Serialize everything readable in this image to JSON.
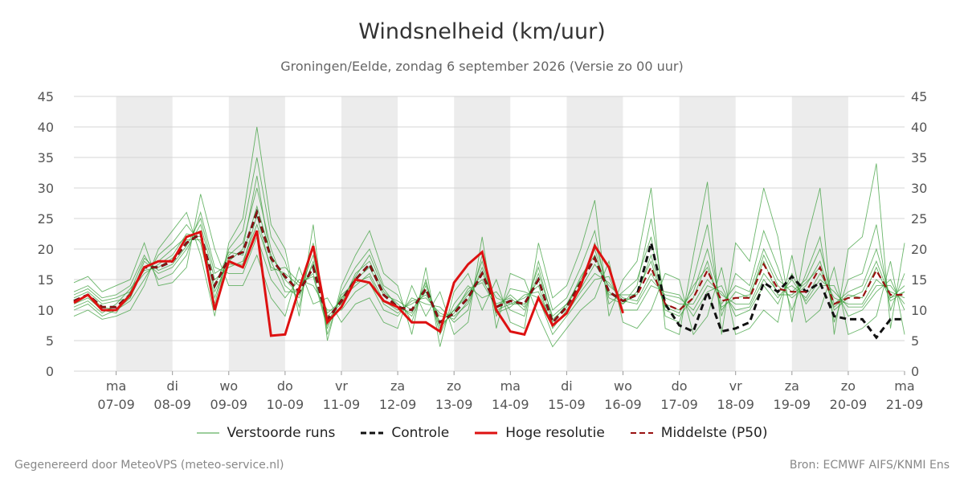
{
  "chart_data": {
    "type": "line",
    "title": "Windsnelheid (km/uur)",
    "subtitle": "Groningen/Eelde, zondag  6 september 2026 (Versie zo 00 uur)",
    "ylim": [
      0,
      45
    ],
    "yticks": [
      0,
      5,
      10,
      15,
      20,
      25,
      30,
      35,
      40,
      45
    ],
    "xlim": [
      -0.75,
      14.0
    ],
    "day_ticks": [
      {
        "x": 0,
        "day": "ma",
        "date": "07-09"
      },
      {
        "x": 1,
        "day": "di",
        "date": "08-09"
      },
      {
        "x": 2,
        "day": "wo",
        "date": "09-09"
      },
      {
        "x": 3,
        "day": "do",
        "date": "10-09"
      },
      {
        "x": 4,
        "day": "vr",
        "date": "11-09"
      },
      {
        "x": 5,
        "day": "za",
        "date": "12-09"
      },
      {
        "x": 6,
        "day": "zo",
        "date": "13-09"
      },
      {
        "x": 7,
        "day": "ma",
        "date": "14-09"
      },
      {
        "x": 8,
        "day": "di",
        "date": "15-09"
      },
      {
        "x": 9,
        "day": "wo",
        "date": "16-09"
      },
      {
        "x": 10,
        "day": "do",
        "date": "17-09"
      },
      {
        "x": 11,
        "day": "vr",
        "date": "18-09"
      },
      {
        "x": 12,
        "day": "za",
        "date": "19-09"
      },
      {
        "x": 13,
        "day": "zo",
        "date": "20-09"
      },
      {
        "x": 14,
        "day": "ma",
        "date": "21-09"
      }
    ],
    "shaded_days": [
      [
        0,
        1
      ],
      [
        2,
        3
      ],
      [
        4,
        5
      ],
      [
        6,
        7
      ],
      [
        8,
        9
      ],
      [
        10,
        11
      ],
      [
        12,
        13
      ]
    ],
    "grid": true,
    "legend_position": "bottom",
    "hires_step_days": 0.25,
    "ens_step_days": 0.25,
    "series": [
      {
        "name": "Hoge resolutie",
        "color": "#dd1111",
        "style": "solid",
        "x_start": -0.75,
        "values": [
          11.2,
          12.5,
          10.0,
          10.0,
          12.5,
          17.0,
          18.0,
          18.0,
          22.0,
          22.8,
          10.0,
          18.0,
          17.0,
          23.0,
          5.8,
          6.0,
          13.5,
          20.5,
          8.0,
          10.5,
          15.0,
          14.5,
          11.5,
          10.5,
          8.0,
          8.0,
          6.5,
          14.5,
          17.5,
          19.5,
          10.0,
          6.5,
          6.0,
          12.0,
          7.5,
          9.5,
          14.0,
          20.5,
          17.0,
          9.5
        ]
      },
      {
        "name": "Controle",
        "color": "#111111",
        "style": "dashed",
        "x_start": -0.75,
        "values": [
          11.5,
          12.5,
          10.5,
          10.5,
          12.5,
          17.0,
          17.0,
          18.0,
          21.0,
          22.5,
          14.0,
          18.5,
          19.5,
          26.0,
          18.5,
          15.5,
          13.0,
          17.0,
          8.5,
          11.5,
          15.0,
          17.5,
          12.5,
          10.5,
          10.0,
          13.5,
          8.0,
          9.5,
          12.0,
          16.0,
          10.5,
          11.5,
          11.0,
          15.0,
          8.0,
          10.5,
          14.5,
          18.5,
          13.0,
          11.5,
          12.5,
          21.0,
          11.0,
          7.5,
          6.5,
          13.0,
          6.5,
          7.0,
          8.0,
          14.5,
          13.0,
          15.5,
          13.0,
          14.5,
          9.0,
          8.5,
          8.5,
          5.5,
          8.5,
          8.5
        ]
      },
      {
        "name": "Middelste (P50)",
        "color": "#991111",
        "style": "dashed",
        "x_start": -0.75,
        "values": [
          11.5,
          12.5,
          10.5,
          10.5,
          12.5,
          17.0,
          17.0,
          18.0,
          21.0,
          22.5,
          14.0,
          18.5,
          19.5,
          26.0,
          18.5,
          15.5,
          13.0,
          17.0,
          8.5,
          11.5,
          15.0,
          17.5,
          12.5,
          10.5,
          10.0,
          13.5,
          8.0,
          9.5,
          12.0,
          16.0,
          10.5,
          11.5,
          11.0,
          15.0,
          8.0,
          10.5,
          14.5,
          18.5,
          13.0,
          11.5,
          12.5,
          17.0,
          11.0,
          10.0,
          12.0,
          16.5,
          11.5,
          12.0,
          12.0,
          17.5,
          13.5,
          13.0,
          13.0,
          17.0,
          11.0,
          12.0,
          12.0,
          16.5,
          12.5,
          12.5
        ]
      },
      {
        "name": "Verstoorde runs",
        "color": "#3a9e3a",
        "style": "thin",
        "x_start": -0.75,
        "members": [
          [
            11.0,
            12.0,
            10.0,
            9.5,
            13.0,
            16.0,
            17.5,
            19.0,
            22.5,
            22.0,
            12.0,
            19.0,
            21.0,
            30.0,
            20.0,
            14.0,
            12.0,
            18.0,
            9.0,
            11.0,
            16.0,
            18.0,
            13.0,
            11.0,
            9.0,
            14.0,
            7.0,
            10.0,
            13.0,
            15.0,
            11.0,
            12.0,
            10.0,
            16.0,
            9.0,
            11.0,
            15.0,
            20.0,
            12.0,
            11.0,
            13.0,
            18.0,
            10.0,
            9.0,
            12.0,
            18.0,
            10.0,
            13.0,
            12.0,
            19.0,
            14.0,
            12.0,
            14.0,
            18.0,
            10.0,
            12.0,
            13.0,
            18.0,
            12.0,
            13.0
          ],
          [
            12.0,
            13.0,
            11.0,
            11.5,
            12.0,
            18.0,
            16.0,
            17.0,
            20.0,
            24.0,
            15.0,
            17.0,
            18.0,
            24.0,
            17.0,
            16.0,
            14.0,
            16.0,
            7.5,
            12.0,
            14.0,
            16.0,
            11.5,
            10.0,
            11.0,
            12.5,
            9.0,
            9.0,
            11.0,
            17.0,
            10.0,
            11.0,
            12.0,
            14.0,
            7.0,
            10.0,
            13.5,
            17.5,
            14.0,
            12.0,
            11.5,
            16.0,
            12.0,
            11.0,
            11.0,
            15.0,
            12.5,
            11.0,
            11.0,
            16.0,
            13.0,
            14.0,
            12.0,
            16.0,
            12.0,
            11.0,
            11.0,
            15.0,
            13.0,
            12.0
          ],
          [
            10.0,
            11.0,
            9.0,
            10.0,
            11.5,
            15.0,
            19.0,
            21.0,
            24.0,
            21.0,
            11.0,
            20.0,
            23.0,
            35.0,
            22.0,
            18.0,
            10.5,
            21.0,
            6.0,
            13.0,
            17.0,
            20.0,
            14.0,
            12.5,
            8.0,
            15.0,
            6.0,
            11.0,
            14.0,
            12.0,
            13.0,
            10.0,
            9.0,
            18.0,
            10.0,
            12.0,
            17.0,
            23.0,
            11.0,
            13.0,
            15.0,
            22.0,
            9.0,
            8.0,
            15.0,
            24.0,
            9.0,
            16.0,
            14.0,
            23.0,
            17.0,
            10.0,
            16.0,
            22.0,
            8.0,
            15.0,
            16.0,
            24.0,
            10.0,
            16.0
          ],
          [
            13.0,
            14.0,
            12.0,
            12.5,
            14.0,
            19.0,
            15.0,
            16.0,
            19.0,
            26.0,
            17.0,
            16.0,
            16.0,
            22.0,
            15.0,
            12.0,
            15.0,
            14.0,
            10.0,
            10.0,
            13.0,
            14.5,
            10.0,
            9.0,
            12.0,
            11.0,
            10.5,
            8.0,
            10.0,
            19.0,
            9.0,
            13.5,
            13.0,
            12.0,
            6.0,
            9.0,
            12.0,
            15.0,
            15.5,
            10.0,
            10.0,
            14.0,
            13.0,
            12.5,
            9.0,
            13.0,
            14.0,
            9.0,
            10.0,
            14.0,
            11.0,
            16.0,
            11.0,
            14.0,
            14.0,
            9.0,
            10.0,
            13.0,
            15.0,
            10.0
          ],
          [
            9.0,
            10.0,
            8.5,
            9.0,
            10.0,
            14.0,
            20.0,
            23.0,
            26.0,
            19.0,
            9.0,
            21.0,
            25.0,
            40.0,
            24.0,
            20.0,
            9.0,
            24.0,
            5.0,
            14.0,
            19.0,
            23.0,
            16.0,
            14.0,
            6.0,
            17.0,
            4.0,
            13.0,
            16.0,
            10.0,
            15.0,
            8.0,
            7.0,
            21.0,
            12.0,
            14.0,
            20.0,
            28.0,
            9.0,
            15.0,
            18.0,
            30.0,
            7.0,
            6.0,
            19.0,
            31.0,
            6.0,
            21.0,
            18.0,
            30.0,
            22.0,
            8.0,
            21.0,
            30.0,
            6.0,
            20.0,
            22.0,
            34.0,
            7.0,
            21.0
          ],
          [
            14.5,
            15.5,
            13.0,
            14.0,
            15.0,
            21.0,
            14.0,
            14.5,
            17.0,
            29.0,
            20.0,
            14.0,
            14.0,
            19.0,
            12.0,
            9.0,
            17.0,
            11.0,
            12.0,
            8.0,
            11.0,
            12.0,
            8.0,
            7.0,
            14.0,
            9.0,
            13.0,
            6.0,
            8.0,
            22.0,
            7.0,
            16.0,
            15.0,
            9.0,
            4.0,
            7.0,
            10.0,
            12.0,
            18.0,
            8.0,
            7.0,
            10.0,
            16.0,
            15.0,
            6.0,
            9.0,
            17.0,
            6.0,
            7.0,
            10.0,
            8.0,
            19.0,
            8.0,
            10.0,
            17.0,
            6.0,
            7.0,
            9.0,
            18.0,
            6.0
          ],
          [
            11.5,
            12.5,
            10.5,
            10.0,
            12.0,
            17.0,
            18.0,
            20.0,
            22.0,
            23.0,
            13.0,
            18.0,
            20.0,
            32.0,
            18.0,
            13.0,
            13.0,
            19.0,
            8.0,
            12.0,
            15.0,
            17.0,
            12.5,
            11.5,
            10.0,
            13.0,
            8.0,
            10.0,
            12.5,
            16.0,
            12.0,
            11.0,
            11.0,
            15.0,
            8.0,
            11.0,
            14.0,
            21.0,
            13.0,
            11.0,
            14.0,
            25.0,
            11.0,
            10.0,
            13.0,
            20.0,
            11.0,
            14.0,
            13.0,
            20.0,
            15.0,
            13.0,
            15.0,
            20.0,
            11.0,
            13.0,
            14.0,
            20.0,
            12.0,
            14.0
          ],
          [
            10.5,
            11.5,
            9.5,
            11.0,
            13.5,
            16.5,
            17.0,
            18.5,
            21.5,
            21.5,
            14.0,
            19.5,
            19.0,
            27.0,
            19.0,
            15.0,
            12.5,
            17.5,
            9.5,
            11.5,
            15.5,
            19.0,
            13.5,
            10.5,
            9.5,
            14.5,
            7.5,
            9.5,
            13.5,
            14.5,
            10.5,
            12.5,
            10.5,
            17.0,
            8.5,
            10.5,
            15.5,
            19.0,
            12.5,
            12.5,
            12.5,
            19.0,
            10.5,
            9.5,
            14.0,
            17.0,
            10.5,
            12.0,
            12.5,
            18.0,
            12.5,
            12.5,
            14.5,
            17.0,
            10.5,
            12.5,
            12.0,
            17.0,
            11.5,
            13.0
          ],
          [
            12.5,
            13.5,
            11.5,
            12.0,
            13.0,
            18.5,
            16.5,
            17.5,
            20.5,
            25.0,
            16.0,
            17.5,
            17.5,
            25.5,
            16.5,
            17.0,
            14.5,
            15.5,
            7.0,
            12.5,
            14.5,
            15.5,
            11.0,
            9.5,
            11.5,
            12.0,
            9.5,
            8.5,
            11.5,
            18.0,
            9.5,
            10.5,
            12.5,
            13.0,
            7.5,
            9.5,
            13.0,
            16.0,
            14.5,
            11.5,
            11.0,
            15.0,
            12.5,
            12.0,
            10.0,
            14.0,
            13.0,
            10.0,
            10.5,
            15.0,
            12.0,
            15.0,
            11.5,
            15.0,
            13.0,
            10.5,
            10.5,
            14.0,
            14.0,
            11.0
          ]
        ]
      }
    ]
  },
  "legend": {
    "ensemble": "Verstoorde runs",
    "control": "Controle",
    "hires": "Hoge resolutie",
    "median": "Middelste (P50)"
  },
  "footer": {
    "left": "Gegenereerd door MeteoVPS (meteo-service.nl)",
    "right": "Bron: ECMWF AIFS/KNMI Ens"
  }
}
